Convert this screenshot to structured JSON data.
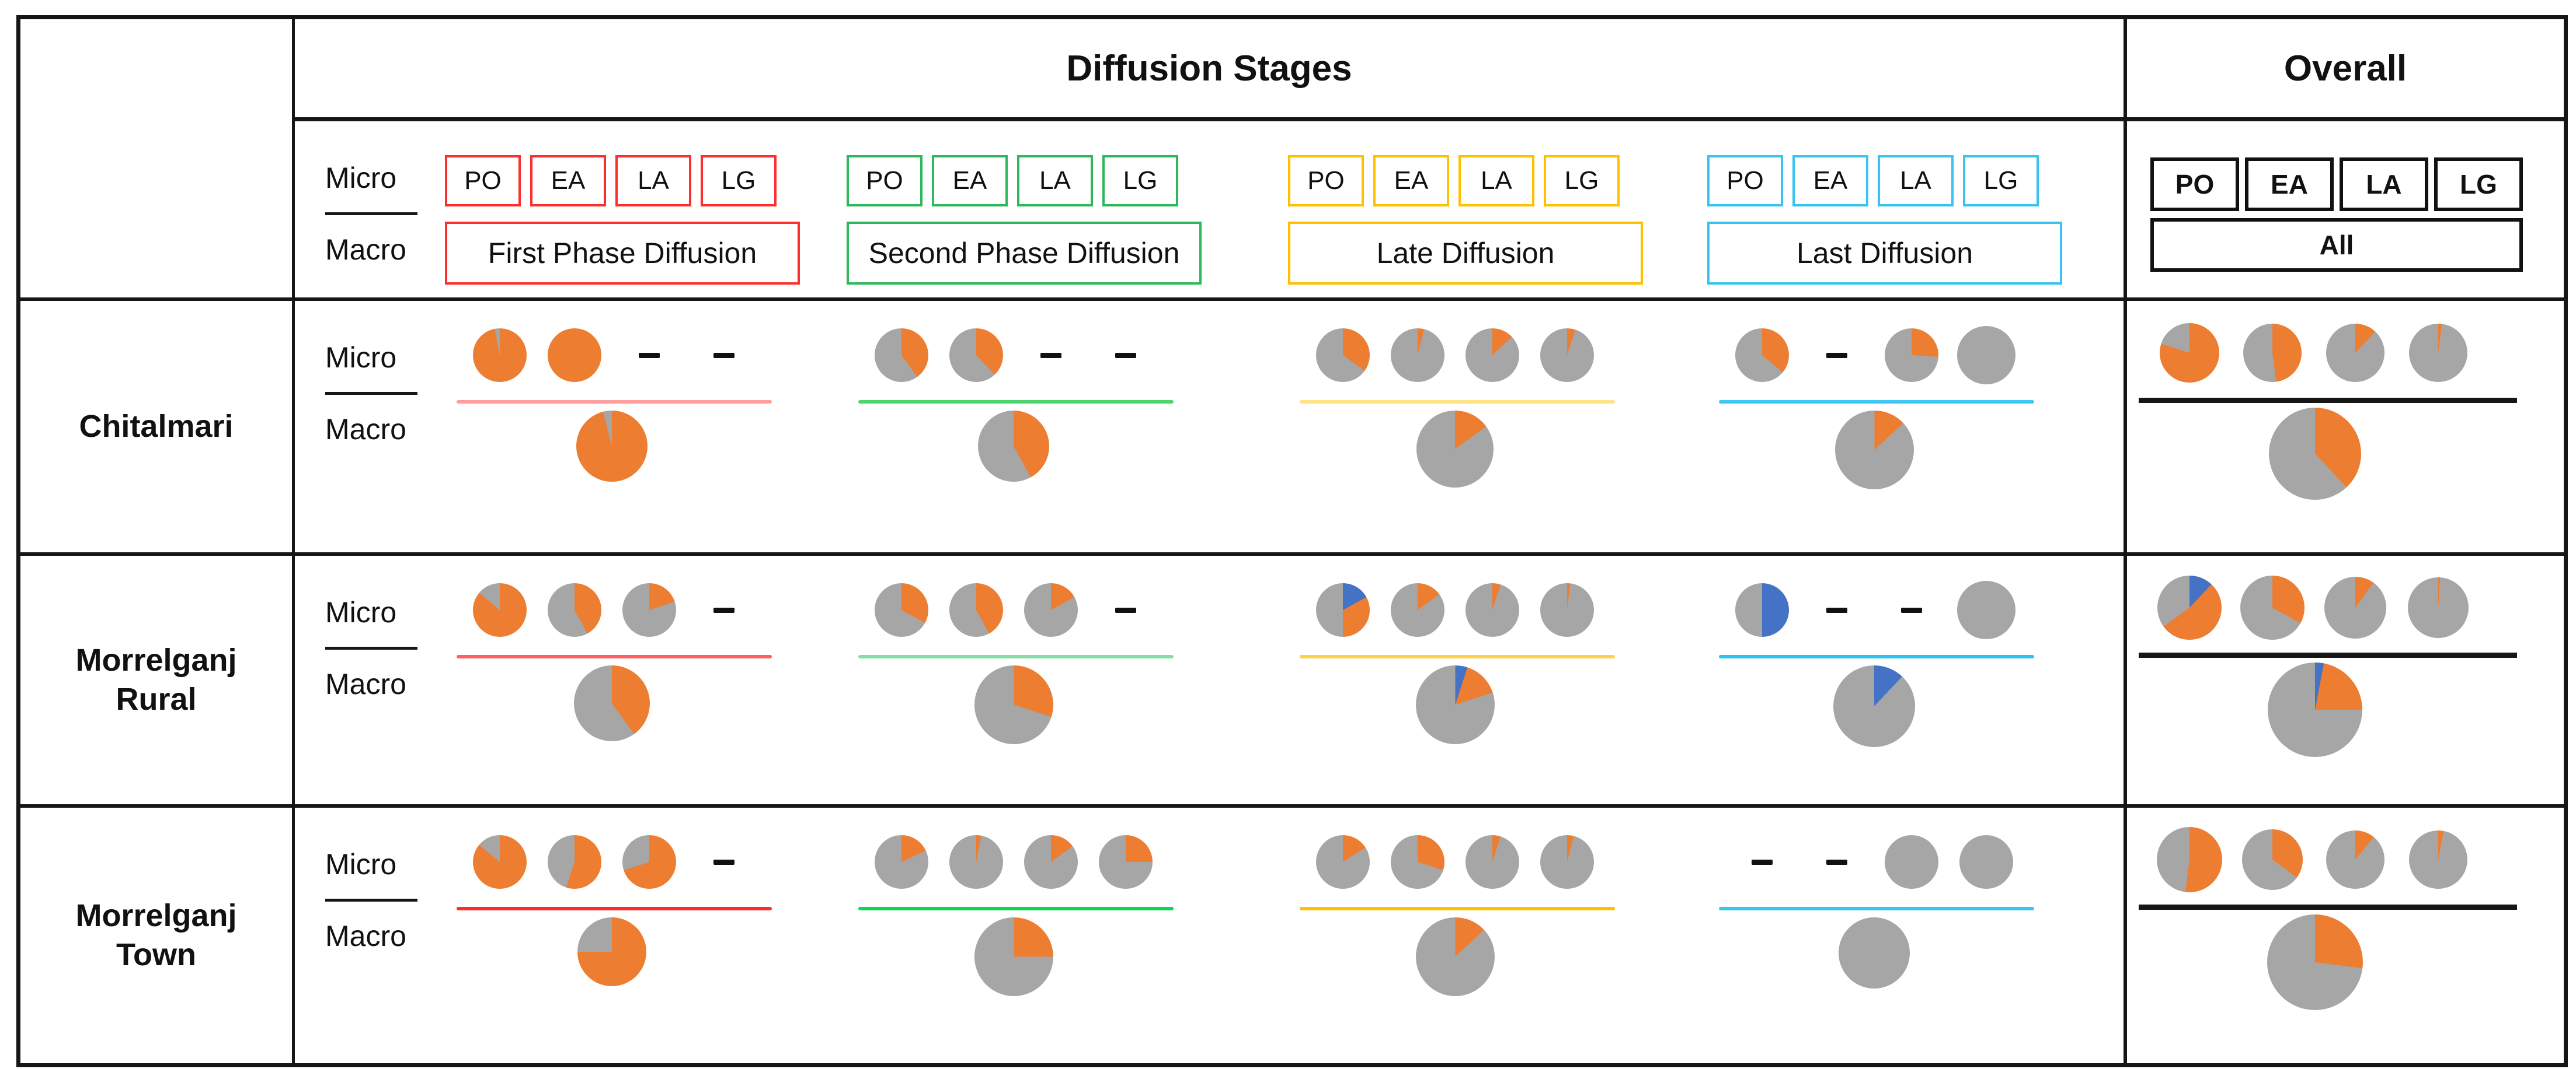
{
  "header": {
    "title": "Diffusion Stages",
    "overall_title": "Overall",
    "micro_label": "Micro",
    "macro_label": "Macro",
    "codes": [
      "PO",
      "EA",
      "LA",
      "LG"
    ],
    "all_label": "All"
  },
  "chart_data": {
    "type": "pie",
    "title": "Diffusion Stages",
    "description": "Matrix of pie charts: share of adopters (orange) / special category (blue) / non-adopters (gray) at micro level (PO, EA, LA, LG) and macro level for each diffusion stage and region. Dash means no data.",
    "colors": {
      "orange": "#ED7D31",
      "gray": "#A6A6A6",
      "blue": "#4472C4",
      "black": "#161616"
    },
    "stages": [
      {
        "id": "first",
        "label": "First Phase Diffusion",
        "color": "#FF2E2E"
      },
      {
        "id": "second",
        "label": "Second Phase Diffusion",
        "color": "#2DB85C"
      },
      {
        "id": "late",
        "label": "Late Diffusion",
        "color": "#FFC000"
      },
      {
        "id": "last",
        "label": "Last Diffusion",
        "color": "#38C3F2"
      }
    ],
    "value_note": "numbers are percent of pie area; b = blue share, o = orange share, remainder gray; null = dash (missing)",
    "rows": [
      {
        "label": "Chitalmari",
        "cells": [
          {
            "stage": "first",
            "line_color": "#FF9D9D",
            "micro": [
              {
                "o": 97
              },
              {
                "o": 100
              },
              null,
              null
            ],
            "macro": {
              "o": 96
            },
            "macro_size": 122
          },
          {
            "stage": "second",
            "line_color": "#4ED46E",
            "micro": [
              {
                "o": 40
              },
              {
                "o": 38
              },
              null,
              null
            ],
            "macro": {
              "o": 42
            },
            "macro_size": 122
          },
          {
            "stage": "late",
            "line_color": "#FFE386",
            "micro": [
              {
                "o": 35
              },
              {
                "o": 4
              },
              {
                "o": 13
              },
              {
                "o": 5
              }
            ],
            "macro": {
              "o": 15
            },
            "macro_size": 132
          },
          {
            "stage": "last",
            "line_color": "#41C7F4",
            "micro": [
              {
                "o": 36
              },
              null,
              {
                "o": 26
              },
              {
                "o": 0,
                "size": 100
              }
            ],
            "macro": {
              "o": 13
            },
            "macro_size": 135
          },
          {
            "stage": "overall",
            "line_color": "#161616",
            "micro": [
              {
                "o": 80,
                "size": 102
              },
              {
                "o": 48,
                "size": 100
              },
              {
                "o": 12,
                "size": 100
              },
              {
                "o": 2,
                "size": 100
              }
            ],
            "macro": {
              "o": 38
            },
            "macro_size": 158
          }
        ]
      },
      {
        "label": "Morrelganj Rural",
        "cells": [
          {
            "stage": "first",
            "line_color": "#FF5F5F",
            "micro": [
              {
                "o": 86
              },
              {
                "o": 42
              },
              {
                "o": 20
              },
              null
            ],
            "macro": {
              "o": 40
            },
            "macro_size": 130
          },
          {
            "stage": "second",
            "line_color": "#85DEA6",
            "micro": [
              {
                "o": 33
              },
              {
                "o": 42
              },
              {
                "o": 17
              },
              null
            ],
            "macro": {
              "o": 30
            },
            "macro_size": 135
          },
          {
            "stage": "late",
            "line_color": "#FFD24D",
            "micro": [
              {
                "b": 17,
                "o": 33
              },
              {
                "o": 15
              },
              {
                "o": 5
              },
              {
                "o": 2
              }
            ],
            "macro": {
              "b": 5,
              "o": 15
            },
            "macro_size": 135
          },
          {
            "stage": "last",
            "line_color": "#2AC4F3",
            "micro": [
              {
                "b": 50,
                "o": 0
              },
              null,
              null,
              {
                "o": 0,
                "size": 100
              }
            ],
            "macro": {
              "b": 12,
              "o": 0
            },
            "macro_size": 140
          },
          {
            "stage": "overall",
            "line_color": "#161616",
            "micro": [
              {
                "b": 12,
                "o": 53,
                "size": 110
              },
              {
                "o": 33,
                "size": 110
              },
              {
                "o": 10,
                "size": 106
              },
              {
                "o": 1,
                "size": 104
              }
            ],
            "macro": {
              "b": 3,
              "o": 22
            },
            "macro_size": 162
          }
        ]
      },
      {
        "label": "Morrelganj Town",
        "cells": [
          {
            "stage": "first",
            "line_color": "#FF2A2A",
            "micro": [
              {
                "o": 86
              },
              {
                "o": 55
              },
              {
                "o": 70
              },
              null
            ],
            "macro": {
              "o": 75
            },
            "macro_size": 118
          },
          {
            "stage": "second",
            "line_color": "#0CD455",
            "micro": [
              {
                "o": 18
              },
              {
                "o": 3
              },
              {
                "o": 15
              },
              {
                "o": 25
              }
            ],
            "macro": {
              "o": 25
            },
            "macro_size": 135
          },
          {
            "stage": "late",
            "line_color": "#FFC000",
            "micro": [
              {
                "o": 16
              },
              {
                "o": 30
              },
              {
                "o": 5
              },
              {
                "o": 4
              }
            ],
            "macro": {
              "o": 13
            },
            "macro_size": 135
          },
          {
            "stage": "last",
            "line_color": "#35C6F3",
            "micro": [
              null,
              null,
              {
                "o": 0
              },
              {
                "o": 0
              }
            ],
            "macro": {
              "o": 0
            },
            "macro_size": 122
          },
          {
            "stage": "overall",
            "line_color": "#161616",
            "micro": [
              {
                "o": 52,
                "size": 112
              },
              {
                "o": 35,
                "size": 104
              },
              {
                "o": 11,
                "size": 100
              },
              {
                "o": 3,
                "size": 100
              }
            ],
            "macro": {
              "o": 27
            },
            "macro_size": 164
          }
        ]
      }
    ]
  }
}
